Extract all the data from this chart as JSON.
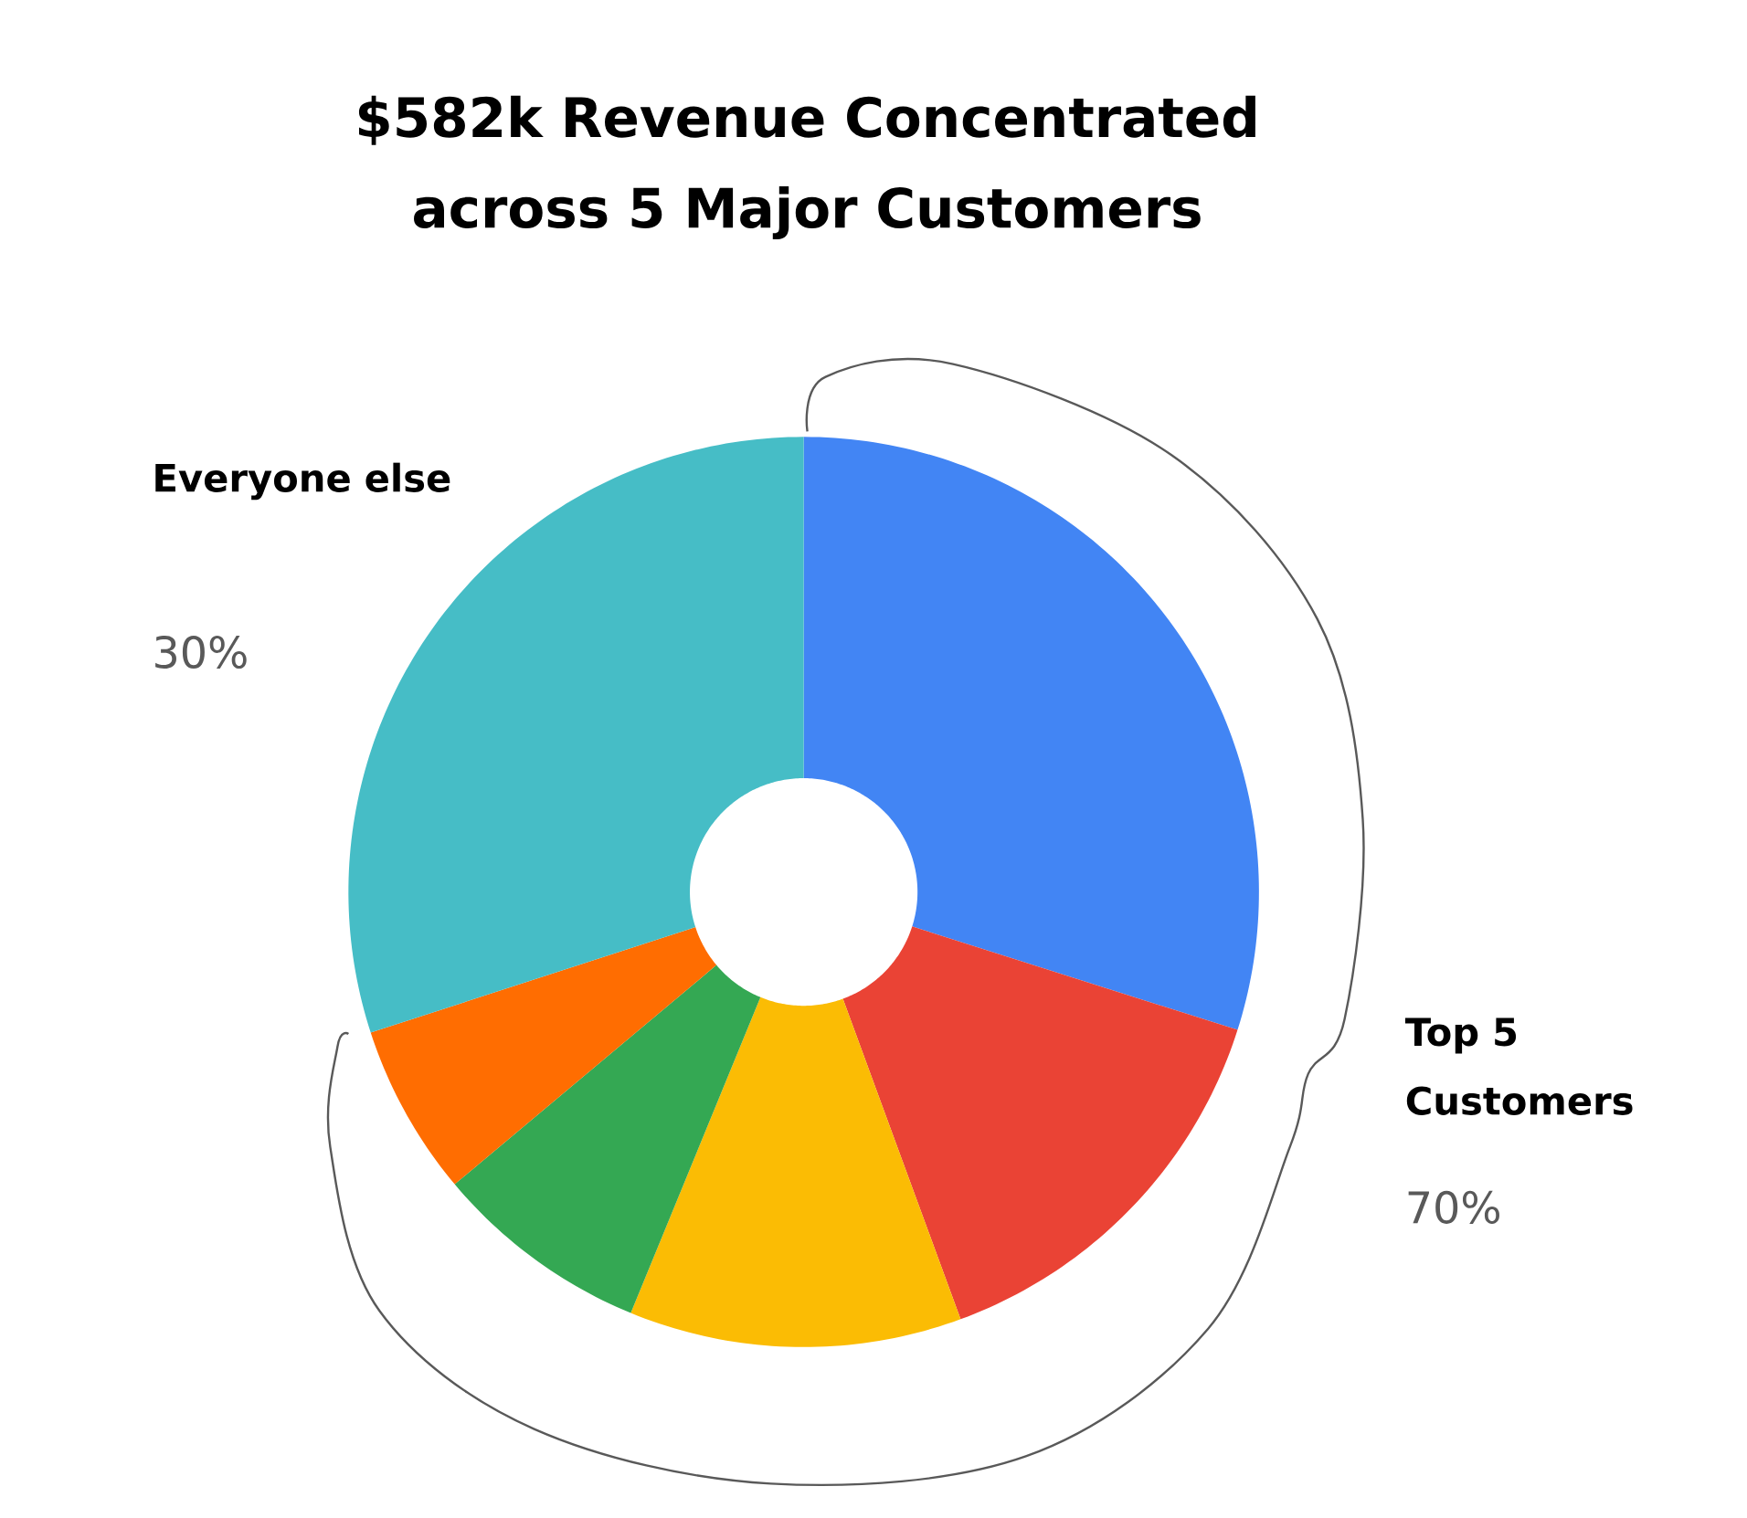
{
  "chart_data": {
    "type": "donut",
    "title": "$582k Revenue Concentrated across 5 Major Customers",
    "categories": [
      null,
      null,
      null,
      null,
      null,
      null
    ],
    "values": [
      29.9,
      14.5,
      11.8,
      7.7,
      6.1,
      30
    ],
    "colors": [
      "#4285f4",
      "#ea4335",
      "#fbbc04",
      "#34a853",
      "#ff6d01",
      "#46bdc6"
    ],
    "annotations": [
      "Everyone else",
      "30%",
      "Top 5 Customers",
      "70%"
    ]
  }
}
